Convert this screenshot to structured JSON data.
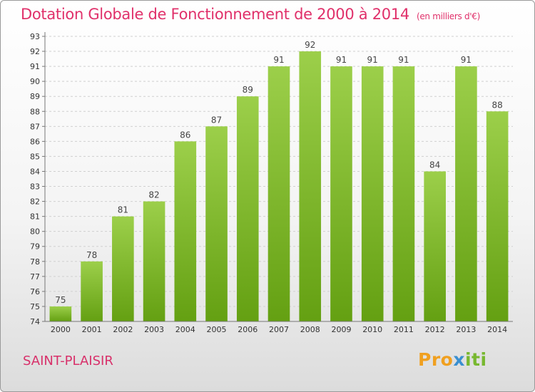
{
  "title": "Dotation Globale de Fonctionnement de 2000 à 2014",
  "unit": "(en milliers d'€)",
  "city": "SAINT-PLAISIR",
  "logo": {
    "part1": "Pro",
    "part2": "x",
    "part3": "iti"
  },
  "colors": {
    "bar_top": "#9ccf4a",
    "bar_bottom": "#64a012",
    "title": "#e0306a",
    "grid": "#d0d0d0"
  },
  "chart_data": {
    "type": "bar",
    "title": "Dotation Globale de Fonctionnement de 2000 à 2014",
    "subtitle": "(en milliers d'€)",
    "categories": [
      "2000",
      "2001",
      "2002",
      "2003",
      "2004",
      "2005",
      "2006",
      "2007",
      "2008",
      "2009",
      "2010",
      "2011",
      "2012",
      "2013",
      "2014"
    ],
    "values": [
      75,
      78,
      81,
      82,
      86,
      87,
      89,
      91,
      92,
      91,
      91,
      91,
      84,
      91,
      88
    ],
    "ylim": [
      74,
      93
    ],
    "yticks": [
      74,
      75,
      76,
      77,
      78,
      79,
      80,
      81,
      82,
      83,
      84,
      85,
      86,
      87,
      88,
      89,
      90,
      91,
      92,
      93
    ],
    "grid": true
  }
}
